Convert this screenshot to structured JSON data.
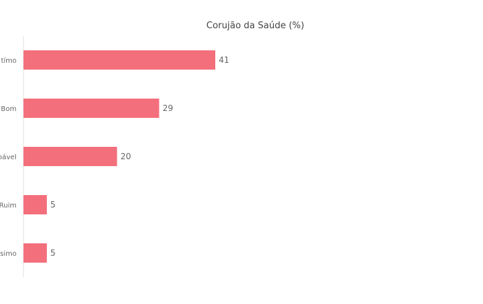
{
  "chart_data": {
    "type": "bar",
    "orientation": "horizontal",
    "title": "Corujão da Saúde (%)",
    "categories": [
      "Ótimo",
      "Bom",
      "Razoável",
      "Ruim",
      "Péssimo"
    ],
    "visible_category_labels": [
      "tímo",
      "Bom",
      "oável",
      "Ruim",
      "ssimo"
    ],
    "values": [
      41,
      29,
      20,
      5,
      5
    ],
    "bar_color": "#f36f7c",
    "xlim": [
      0,
      100
    ],
    "grid": false,
    "legend": "none"
  }
}
